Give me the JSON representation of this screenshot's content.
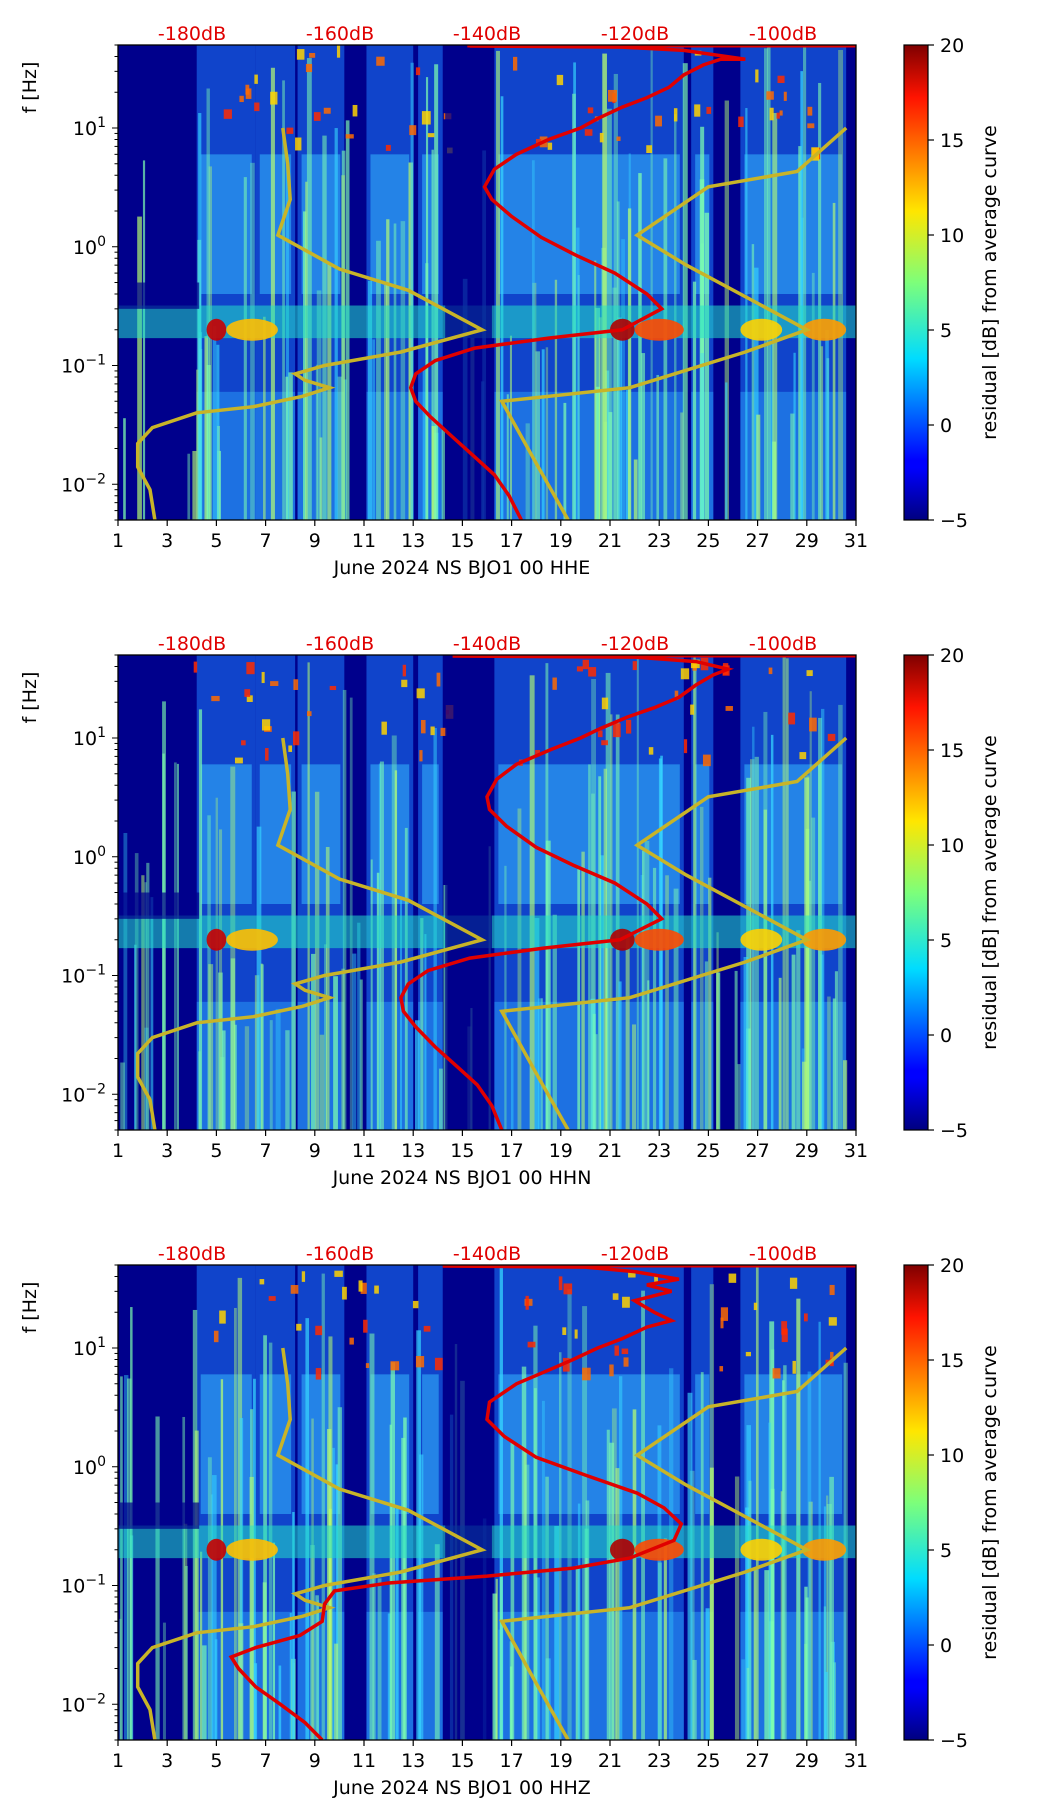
{
  "chart_data": [
    {
      "type": "heatmap",
      "channel": "HHE",
      "xlabel": "June 2024 NS BJO1 00 HHE",
      "ylabel": "f [Hz]",
      "x_ticks": [
        "1",
        "3",
        "5",
        "7",
        "9",
        "11",
        "13",
        "15",
        "17",
        "19",
        "21",
        "23",
        "25",
        "27",
        "29",
        "31"
      ],
      "xlim": [
        1,
        31
      ],
      "y_scale": "log",
      "ylim": [
        0.005,
        50
      ],
      "y_ticks": [
        {
          "value": 0.01,
          "base": "10",
          "exp": "−2"
        },
        {
          "value": 0.1,
          "base": "10",
          "exp": "−1"
        },
        {
          "value": 1,
          "base": "10",
          "exp": "0"
        },
        {
          "value": 10,
          "base": "10",
          "exp": "1"
        }
      ],
      "top_labels": [
        "-180dB",
        "-160dB",
        "-140dB",
        "-120dB",
        "-100dB"
      ],
      "colorbar": {
        "label": "residual [dB] from average curve",
        "ticks": [
          "20",
          "15",
          "10",
          "5",
          "0",
          "−5"
        ],
        "range": [
          -5,
          20
        ]
      },
      "red_curve": [
        [
          17.4,
          0.005
        ],
        [
          16.9,
          0.008
        ],
        [
          16.3,
          0.012
        ],
        [
          15.5,
          0.017
        ],
        [
          14.6,
          0.025
        ],
        [
          13.7,
          0.037
        ],
        [
          13.1,
          0.05
        ],
        [
          12.9,
          0.065
        ],
        [
          13.1,
          0.085
        ],
        [
          13.9,
          0.11
        ],
        [
          15.5,
          0.14
        ],
        [
          18.5,
          0.17
        ],
        [
          21.5,
          0.2
        ],
        [
          23.1,
          0.3
        ],
        [
          22.5,
          0.4
        ],
        [
          21.2,
          0.6
        ],
        [
          19.6,
          0.85
        ],
        [
          18.2,
          1.2
        ],
        [
          17,
          1.8
        ],
        [
          16.2,
          2.5
        ],
        [
          15.9,
          3.2
        ],
        [
          16.3,
          4.5
        ],
        [
          17.2,
          6
        ],
        [
          18.5,
          8
        ],
        [
          19.8,
          10
        ],
        [
          20.5,
          12
        ],
        [
          21.5,
          15
        ],
        [
          22.5,
          18
        ],
        [
          23.4,
          22
        ],
        [
          24,
          28
        ],
        [
          24.8,
          34
        ],
        [
          25.5,
          38
        ],
        [
          26.5,
          38
        ],
        [
          24,
          45
        ],
        [
          21.5,
          48
        ],
        [
          15.3,
          49
        ]
      ],
      "yellow_curves": [
        [
          [
            2.5,
            0.005
          ],
          [
            2.3,
            0.009
          ],
          [
            1.8,
            0.014
          ],
          [
            1.8,
            0.022
          ],
          [
            2.4,
            0.03
          ],
          [
            4.2,
            0.04
          ],
          [
            6.5,
            0.045
          ],
          [
            8.5,
            0.055
          ],
          [
            9.6,
            0.065
          ],
          [
            8.6,
            0.075
          ],
          [
            8.2,
            0.085
          ],
          [
            9.4,
            0.1
          ],
          [
            12.5,
            0.13
          ],
          [
            15.8,
            0.2
          ],
          [
            12.8,
            0.43
          ],
          [
            10,
            0.65
          ],
          [
            7.5,
            1.25
          ],
          [
            8,
            2.5
          ],
          [
            7.9,
            5
          ],
          [
            7.7,
            10
          ]
        ],
        [
          [
            19.3,
            0.005
          ],
          [
            18,
            0.015
          ],
          [
            16.6,
            0.05
          ],
          [
            21.8,
            0.065
          ],
          [
            26.5,
            0.13
          ],
          [
            29,
            0.2
          ],
          [
            26.6,
            0.37
          ],
          [
            24.1,
            0.7
          ],
          [
            22.1,
            1.25
          ],
          [
            25,
            3.2
          ],
          [
            28.6,
            4.3
          ],
          [
            30.6,
            10
          ]
        ]
      ]
    },
    {
      "type": "heatmap",
      "channel": "HHN",
      "xlabel": "June 2024 NS BJO1 00 HHN",
      "ylabel": "f [Hz]",
      "x_ticks": [
        "1",
        "3",
        "5",
        "7",
        "9",
        "11",
        "13",
        "15",
        "17",
        "19",
        "21",
        "23",
        "25",
        "27",
        "29",
        "31"
      ],
      "xlim": [
        1,
        31
      ],
      "y_scale": "log",
      "ylim": [
        0.005,
        50
      ],
      "y_ticks": [
        {
          "value": 0.01,
          "base": "10",
          "exp": "−2"
        },
        {
          "value": 0.1,
          "base": "10",
          "exp": "−1"
        },
        {
          "value": 1,
          "base": "10",
          "exp": "0"
        },
        {
          "value": 10,
          "base": "10",
          "exp": "1"
        }
      ],
      "top_labels": [
        "-180dB",
        "-160dB",
        "-140dB",
        "-120dB",
        "-100dB"
      ],
      "colorbar": {
        "label": "residual [dB] from average curve",
        "ticks": [
          "20",
          "15",
          "10",
          "5",
          "0",
          "−5"
        ],
        "range": [
          -5,
          20
        ]
      },
      "red_curve": [
        [
          16.6,
          0.005
        ],
        [
          16.2,
          0.008
        ],
        [
          15.6,
          0.012
        ],
        [
          14.8,
          0.017
        ],
        [
          13.9,
          0.025
        ],
        [
          13.1,
          0.037
        ],
        [
          12.6,
          0.05
        ],
        [
          12.5,
          0.065
        ],
        [
          12.8,
          0.085
        ],
        [
          13.6,
          0.11
        ],
        [
          15.3,
          0.14
        ],
        [
          18.3,
          0.17
        ],
        [
          21.4,
          0.2
        ],
        [
          23.1,
          0.3
        ],
        [
          22.5,
          0.4
        ],
        [
          21.2,
          0.6
        ],
        [
          19.5,
          0.85
        ],
        [
          18,
          1.2
        ],
        [
          16.8,
          1.8
        ],
        [
          16.1,
          2.5
        ],
        [
          16,
          3.2
        ],
        [
          16.4,
          4.5
        ],
        [
          17.2,
          6
        ],
        [
          18.6,
          8
        ],
        [
          19.8,
          10
        ],
        [
          20.6,
          12
        ],
        [
          21.7,
          15
        ],
        [
          22.8,
          18
        ],
        [
          23.8,
          22
        ],
        [
          24.5,
          28
        ],
        [
          25.2,
          34
        ],
        [
          25.8,
          38
        ],
        [
          24.5,
          44
        ],
        [
          22,
          48
        ],
        [
          14.6,
          49
        ]
      ],
      "yellow_curves": [
        [
          [
            2.5,
            0.005
          ],
          [
            2.3,
            0.009
          ],
          [
            1.8,
            0.014
          ],
          [
            1.8,
            0.022
          ],
          [
            2.4,
            0.03
          ],
          [
            4.2,
            0.04
          ],
          [
            6.5,
            0.045
          ],
          [
            8.5,
            0.055
          ],
          [
            9.6,
            0.065
          ],
          [
            8.6,
            0.075
          ],
          [
            8.2,
            0.085
          ],
          [
            9.4,
            0.1
          ],
          [
            12.5,
            0.13
          ],
          [
            15.8,
            0.2
          ],
          [
            12.8,
            0.43
          ],
          [
            10,
            0.65
          ],
          [
            7.5,
            1.25
          ],
          [
            8,
            2.5
          ],
          [
            7.9,
            5
          ],
          [
            7.7,
            10
          ]
        ],
        [
          [
            19.3,
            0.005
          ],
          [
            18,
            0.015
          ],
          [
            16.6,
            0.05
          ],
          [
            21.8,
            0.065
          ],
          [
            26.5,
            0.13
          ],
          [
            29,
            0.2
          ],
          [
            26.6,
            0.37
          ],
          [
            24.1,
            0.7
          ],
          [
            22.1,
            1.25
          ],
          [
            25,
            3.2
          ],
          [
            28.6,
            4.3
          ],
          [
            30.6,
            10
          ]
        ]
      ]
    },
    {
      "type": "heatmap",
      "channel": "HHZ",
      "xlabel": "June 2024 NS BJO1 00 HHZ",
      "ylabel": "f [Hz]",
      "x_ticks": [
        "1",
        "3",
        "5",
        "7",
        "9",
        "11",
        "13",
        "15",
        "17",
        "19",
        "21",
        "23",
        "25",
        "27",
        "29",
        "31"
      ],
      "xlim": [
        1,
        31
      ],
      "y_scale": "log",
      "ylim": [
        0.005,
        50
      ],
      "y_ticks": [
        {
          "value": 0.01,
          "base": "10",
          "exp": "−2"
        },
        {
          "value": 0.1,
          "base": "10",
          "exp": "−1"
        },
        {
          "value": 1,
          "base": "10",
          "exp": "0"
        },
        {
          "value": 10,
          "base": "10",
          "exp": "1"
        }
      ],
      "top_labels": [
        "-180dB",
        "-160dB",
        "-140dB",
        "-120dB",
        "-100dB"
      ],
      "colorbar": {
        "label": "residual [dB] from average curve",
        "ticks": [
          "20",
          "15",
          "10",
          "5",
          "0",
          "−5"
        ],
        "range": [
          -5,
          20
        ]
      },
      "red_curve": [
        [
          9.3,
          0.005
        ],
        [
          8.6,
          0.007
        ],
        [
          7.6,
          0.01
        ],
        [
          6.6,
          0.014
        ],
        [
          5.9,
          0.02
        ],
        [
          5.6,
          0.025
        ],
        [
          6.6,
          0.03
        ],
        [
          8.4,
          0.038
        ],
        [
          9.3,
          0.05
        ],
        [
          9.4,
          0.07
        ],
        [
          9.8,
          0.09
        ],
        [
          12,
          0.105
        ],
        [
          16,
          0.12
        ],
        [
          19.5,
          0.14
        ],
        [
          21.8,
          0.17
        ],
        [
          23.6,
          0.24
        ],
        [
          23.9,
          0.33
        ],
        [
          23.2,
          0.45
        ],
        [
          22.1,
          0.6
        ],
        [
          20,
          0.85
        ],
        [
          18,
          1.2
        ],
        [
          16.7,
          1.8
        ],
        [
          16,
          2.5
        ],
        [
          16.1,
          3.5
        ],
        [
          17.2,
          5
        ],
        [
          18.5,
          6.5
        ],
        [
          19.5,
          8
        ],
        [
          20.5,
          10
        ],
        [
          21.5,
          12
        ],
        [
          22.5,
          15
        ],
        [
          23.5,
          17
        ],
        [
          22.8,
          20
        ],
        [
          22,
          25
        ],
        [
          23.5,
          30
        ],
        [
          22.5,
          34
        ],
        [
          23.8,
          38
        ],
        [
          22,
          44
        ],
        [
          20,
          48
        ],
        [
          14.2,
          49
        ]
      ],
      "yellow_curves": [
        [
          [
            2.5,
            0.005
          ],
          [
            2.3,
            0.009
          ],
          [
            1.8,
            0.014
          ],
          [
            1.8,
            0.022
          ],
          [
            2.4,
            0.03
          ],
          [
            4.2,
            0.04
          ],
          [
            6.5,
            0.045
          ],
          [
            8.5,
            0.055
          ],
          [
            9.6,
            0.065
          ],
          [
            8.6,
            0.075
          ],
          [
            8.2,
            0.085
          ],
          [
            9.4,
            0.1
          ],
          [
            12.5,
            0.13
          ],
          [
            15.8,
            0.2
          ],
          [
            12.8,
            0.43
          ],
          [
            10,
            0.65
          ],
          [
            7.5,
            1.25
          ],
          [
            8,
            2.5
          ],
          [
            7.9,
            5
          ],
          [
            7.7,
            10
          ]
        ],
        [
          [
            19.3,
            0.005
          ],
          [
            18,
            0.015
          ],
          [
            16.6,
            0.05
          ],
          [
            21.8,
            0.065
          ],
          [
            26.5,
            0.13
          ],
          [
            29,
            0.2
          ],
          [
            26.6,
            0.37
          ],
          [
            24.1,
            0.7
          ],
          [
            22.1,
            1.25
          ],
          [
            25,
            3.2
          ],
          [
            28.6,
            4.3
          ],
          [
            30.6,
            10
          ]
        ]
      ]
    }
  ]
}
